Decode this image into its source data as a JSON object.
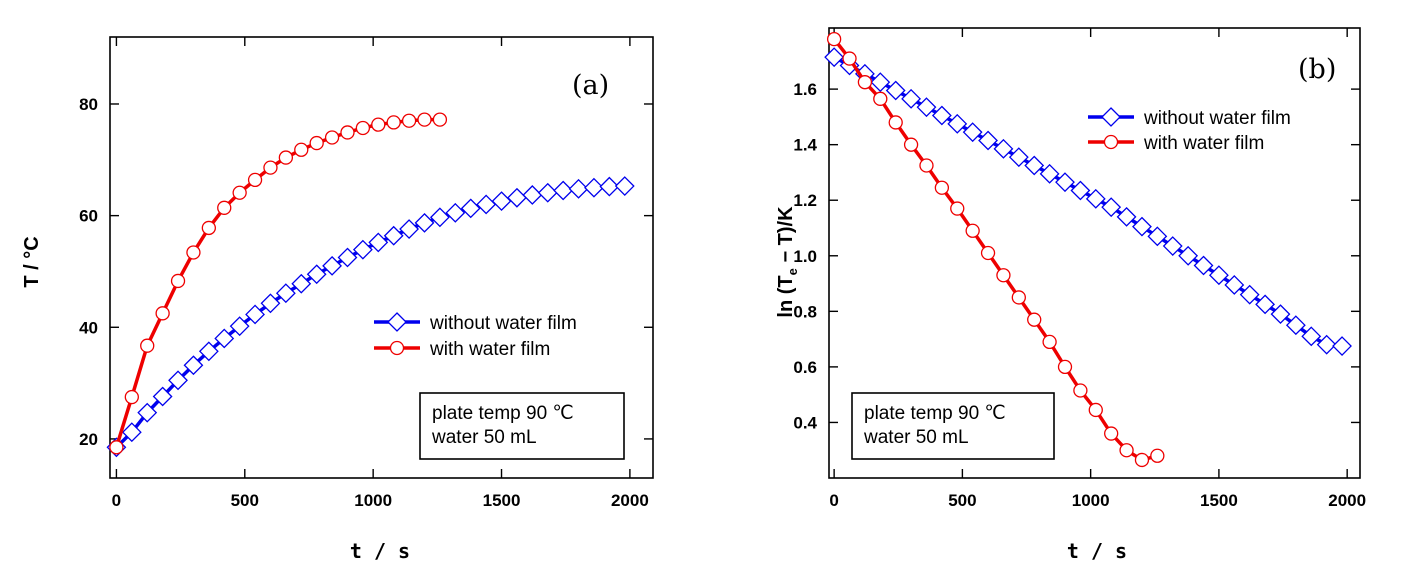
{
  "chart_data": [
    {
      "type": "line",
      "panel_label": "(a)",
      "xlabel": "t / s",
      "ylabel": "T / °C",
      "xlim": [
        -25,
        2090
      ],
      "ylim": [
        13,
        92
      ],
      "xticks": [
        0,
        500,
        1000,
        1500,
        2000
      ],
      "yticks": [
        20,
        40,
        60,
        80
      ],
      "grid": false,
      "legend_position": "center-right",
      "note": [
        "plate temp 90 ℃",
        "water 50 mL"
      ],
      "series": [
        {
          "name": "without water film",
          "color": "#0000ee",
          "marker": "diamond",
          "x": [
            0,
            60,
            120,
            180,
            240,
            300,
            360,
            420,
            480,
            540,
            600,
            660,
            720,
            780,
            840,
            900,
            960,
            1020,
            1080,
            1140,
            1200,
            1260,
            1320,
            1380,
            1440,
            1500,
            1560,
            1620,
            1680,
            1740,
            1800,
            1860,
            1920,
            1980
          ],
          "y": [
            18.5,
            21.2,
            24.7,
            27.6,
            30.5,
            33.2,
            35.7,
            38.0,
            40.2,
            42.3,
            44.3,
            46.1,
            47.8,
            49.5,
            51.0,
            52.5,
            53.9,
            55.2,
            56.4,
            57.6,
            58.7,
            59.7,
            60.5,
            61.3,
            62.0,
            62.6,
            63.2,
            63.7,
            64.1,
            64.5,
            64.8,
            65.0,
            65.2,
            65.3
          ]
        },
        {
          "name": "with water film",
          "color": "#ee0000",
          "marker": "circle",
          "x": [
            0,
            60,
            120,
            180,
            240,
            300,
            360,
            420,
            480,
            540,
            600,
            660,
            720,
            780,
            840,
            900,
            960,
            1020,
            1080,
            1140,
            1200,
            1260
          ],
          "y": [
            18.5,
            27.5,
            36.7,
            42.5,
            48.3,
            53.4,
            57.8,
            61.4,
            64.1,
            66.4,
            68.6,
            70.4,
            71.8,
            73.0,
            74.0,
            74.9,
            75.7,
            76.3,
            76.7,
            77.0,
            77.2,
            77.2
          ]
        }
      ]
    },
    {
      "type": "line",
      "panel_label": "(b)",
      "xlabel": "t / s",
      "ylabel": "ln (T",
      "ylabel_sub": "e",
      "ylabel_tail": " − T)/K",
      "xlim": [
        -20,
        2050
      ],
      "ylim": [
        0.2,
        1.82
      ],
      "xticks": [
        0,
        500,
        1000,
        1500,
        2000
      ],
      "yticks": [
        0.4,
        0.6,
        0.8,
        1.0,
        1.2,
        1.4,
        1.6
      ],
      "ytick_labels": [
        "0.4",
        "0.6",
        "0.8",
        "1.0",
        "1.2",
        "1.4",
        "1.6"
      ],
      "grid": false,
      "legend_position": "top-right",
      "note": [
        "plate temp 90 ℃",
        "water 50 mL"
      ],
      "series": [
        {
          "name": "without water film",
          "color": "#0000ee",
          "marker": "diamond",
          "x": [
            0,
            60,
            120,
            180,
            240,
            300,
            360,
            420,
            480,
            540,
            600,
            660,
            720,
            780,
            840,
            900,
            960,
            1020,
            1080,
            1140,
            1200,
            1260,
            1320,
            1380,
            1440,
            1500,
            1560,
            1620,
            1680,
            1740,
            1800,
            1860,
            1920,
            1980
          ],
          "y": [
            1.715,
            1.685,
            1.655,
            1.625,
            1.595,
            1.565,
            1.535,
            1.505,
            1.475,
            1.445,
            1.415,
            1.385,
            1.355,
            1.325,
            1.295,
            1.265,
            1.235,
            1.205,
            1.175,
            1.14,
            1.105,
            1.07,
            1.035,
            1.0,
            0.965,
            0.93,
            0.895,
            0.86,
            0.825,
            0.79,
            0.75,
            0.71,
            0.68,
            0.675
          ]
        },
        {
          "name": "with water film",
          "color": "#ee0000",
          "marker": "circle",
          "x": [
            0,
            60,
            120,
            180,
            240,
            300,
            360,
            420,
            480,
            540,
            600,
            660,
            720,
            780,
            840,
            900,
            960,
            1020,
            1080,
            1140,
            1200,
            1260
          ],
          "y": [
            1.78,
            1.71,
            1.625,
            1.565,
            1.48,
            1.4,
            1.325,
            1.245,
            1.17,
            1.09,
            1.01,
            0.93,
            0.85,
            0.77,
            0.69,
            0.6,
            0.515,
            0.445,
            0.36,
            0.3,
            0.265,
            0.28
          ]
        }
      ]
    }
  ]
}
